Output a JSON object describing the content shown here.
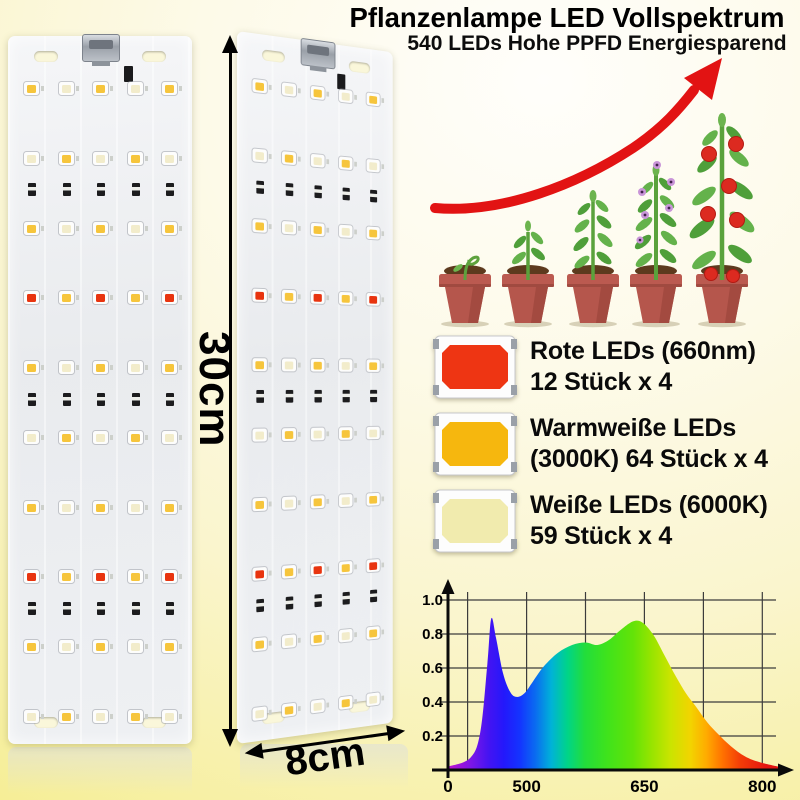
{
  "header": {
    "title": "Pflanzenlampe LED Vollspektrum",
    "subtitle": "540 LEDs Hohe PPFD Energiesparend"
  },
  "dimensions": {
    "height_label": "30cm",
    "width_label": "8cm"
  },
  "legend": {
    "items": [
      {
        "name": "red-led",
        "color": "#ee3513",
        "lines": [
          "Rote LEDs (660nm)",
          "12 Stück x 4"
        ]
      },
      {
        "name": "warm-white-led",
        "color": "#f6b70e",
        "lines": [
          "Warmweiße LEDs",
          "(3000K) 64 Stück x 4"
        ]
      },
      {
        "name": "white-led",
        "color": "#f1ebae",
        "lines": [
          "Weiße LEDs (6000K)",
          "59 Stück x 4"
        ]
      }
    ]
  },
  "panel": {
    "cols": 5,
    "rows": 10,
    "red_rows": [
      3,
      7
    ],
    "red_cols": [
      0,
      2,
      4
    ],
    "resistor_after": [
      1,
      4,
      7
    ],
    "led_warm_color": "#f6c53c",
    "led_white_color": "#f2eccb",
    "led_red_color": "#e8340f"
  },
  "growth": {
    "stage_icons": [
      "seedling-icon",
      "sprout-icon",
      "young-plant-icon",
      "flowering-plant-icon",
      "fruiting-plant-icon"
    ],
    "arrow_color": "#e21313",
    "pot_color": "#b5564c"
  },
  "chart_data": {
    "type": "area",
    "title": "",
    "xlabel": "",
    "ylabel": "",
    "x_range": [
      400,
      820
    ],
    "y_range": [
      0,
      1.06
    ],
    "x_ticks": [
      {
        "label": "0",
        "at": 400
      },
      {
        "label": "500",
        "at": 500
      },
      {
        "label": "650",
        "at": 650
      },
      {
        "label": "800",
        "at": 800
      }
    ],
    "x_grid": [
      425,
      500,
      575,
      650,
      725,
      800
    ],
    "y_ticks": [
      0.2,
      0.4,
      0.6,
      0.8,
      1.0
    ],
    "grid": true,
    "legend_position": "none",
    "points": [
      [
        400,
        0.02
      ],
      [
        428,
        0.07
      ],
      [
        441,
        0.22
      ],
      [
        450,
        0.62
      ],
      [
        455,
        0.89
      ],
      [
        461,
        0.78
      ],
      [
        470,
        0.57
      ],
      [
        479,
        0.46
      ],
      [
        487,
        0.43
      ],
      [
        497,
        0.45
      ],
      [
        508,
        0.52
      ],
      [
        522,
        0.61
      ],
      [
        540,
        0.69
      ],
      [
        558,
        0.735
      ],
      [
        575,
        0.75
      ],
      [
        590,
        0.735
      ],
      [
        605,
        0.765
      ],
      [
        620,
        0.825
      ],
      [
        636,
        0.875
      ],
      [
        648,
        0.865
      ],
      [
        662,
        0.79
      ],
      [
        676,
        0.67
      ],
      [
        690,
        0.55
      ],
      [
        703,
        0.45
      ],
      [
        716,
        0.37
      ],
      [
        730,
        0.28
      ],
      [
        744,
        0.21
      ],
      [
        760,
        0.14
      ],
      [
        778,
        0.08
      ],
      [
        797,
        0.045
      ],
      [
        820,
        0.02
      ]
    ]
  }
}
